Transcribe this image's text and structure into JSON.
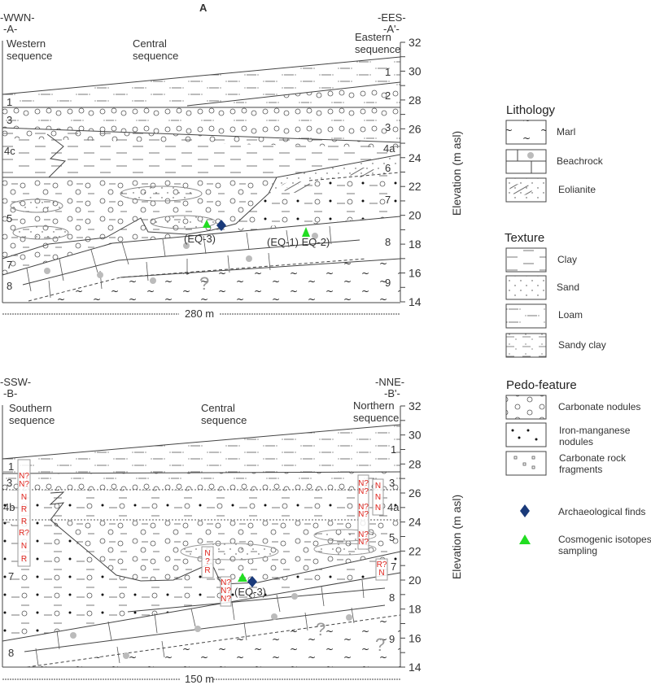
{
  "panel_a": {
    "title": "A",
    "left_dir": "-WWN-",
    "left_point": "-A-",
    "right_dir": "-EES-",
    "right_point": "-A'-",
    "sequences": [
      "Western sequence",
      "Central sequence",
      "Eastern sequence"
    ],
    "scale": "280 m",
    "units_west": [
      "1",
      "3",
      "4c",
      "5",
      "7",
      "8"
    ],
    "units_east": [
      "1",
      "2",
      "3",
      "4a",
      "6",
      "7",
      "8",
      "9"
    ],
    "samples": [
      "(EQ-3)",
      "(EQ-1) EQ-2)"
    ]
  },
  "panel_b": {
    "left_dir": "-SSW-",
    "left_point": "-B-",
    "right_dir": "-NNE-",
    "right_point": "-B'-",
    "sequences": [
      "Southern sequence",
      "Central sequence",
      "Northern sequence"
    ],
    "scale": "150 m",
    "units_west": [
      "1",
      "3",
      "4b",
      "7",
      "8"
    ],
    "units_east": [
      "1",
      "3",
      "4a",
      "5",
      "7",
      "8",
      "9"
    ],
    "samples": [
      "(EQ-3)"
    ],
    "polarity_south": [
      "N?",
      "N?",
      "N",
      "R",
      "R",
      "R?",
      "N",
      "R"
    ],
    "polarity_north_a": [
      "N?",
      "N?",
      "N?",
      "N?",
      "N?",
      "N?"
    ],
    "polarity_north_b": [
      "N",
      "N",
      "N"
    ],
    "polarity_north_c": [
      "R?",
      "N"
    ],
    "polarity_central_a": [
      "N",
      "?",
      "R"
    ],
    "polarity_central_b": [
      "N?",
      "N?",
      "N?"
    ]
  },
  "axis": {
    "label": "Elevation (m asl)",
    "ticks": [
      "32",
      "30",
      "28",
      "26",
      "24",
      "22",
      "20",
      "18",
      "16",
      "14"
    ]
  },
  "legend": {
    "lithology": {
      "title": "Lithology",
      "items": [
        "Marl",
        "Beachrock",
        "Eolianite"
      ]
    },
    "texture": {
      "title": "Texture",
      "items": [
        "Clay",
        "Sand",
        "Loam",
        "Sandy clay"
      ]
    },
    "pedo": {
      "title": "Pedo-feature",
      "items": [
        "Carbonate nodules",
        "Iron-manganese nodules",
        "Carbonate rock fragments"
      ]
    },
    "symbols": [
      "Archaeological finds",
      "Cosmogenic isotopes sampling"
    ]
  },
  "colors": {
    "archaeological_finds": "#1a3a7a",
    "cosmogenic_sampling": "#22dd22",
    "polarity": "#e0231c",
    "line": "#444444"
  }
}
